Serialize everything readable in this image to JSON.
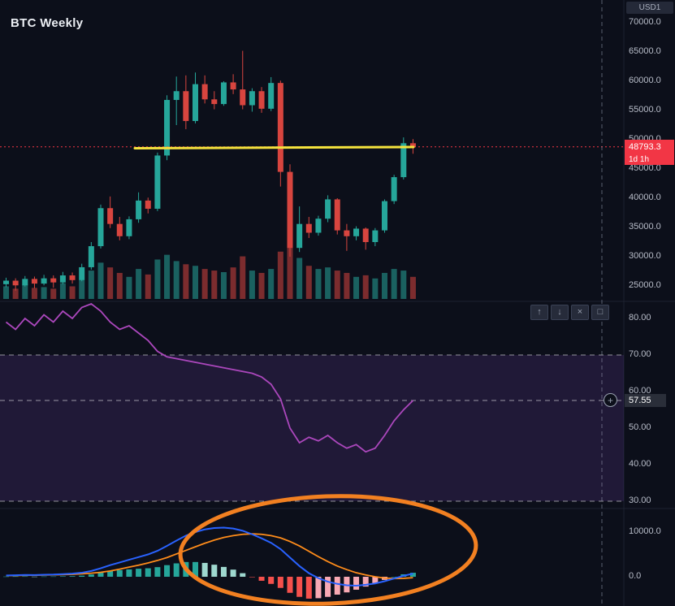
{
  "title": "BTC Weekly",
  "top_right_currency": "USD1",
  "price_axis": {
    "labels": [
      "70000.0",
      "65000.0",
      "60000.0",
      "55000.0",
      "50000.0",
      "45000.0",
      "40000.0",
      "35000.0",
      "30000.0",
      "25000.0"
    ],
    "current_price_label": "48793.3",
    "countdown_label": "1d 1h"
  },
  "rsi_axis": {
    "labels": [
      "80.00",
      "70.00",
      "60.00",
      "50.00",
      "40.00",
      "30.00"
    ],
    "current_value_label": "57.55"
  },
  "macd_axis": {
    "labels": [
      "10000.0",
      "0.0"
    ]
  },
  "pane_toolbar": {
    "buttons": [
      {
        "name": "move-pane-up",
        "glyph": "↑"
      },
      {
        "name": "move-pane-down",
        "glyph": "↓"
      },
      {
        "name": "close-pane",
        "glyph": "×"
      },
      {
        "name": "maximize-pane",
        "glyph": "□"
      }
    ]
  },
  "icons": {
    "plus_icon": "+"
  },
  "colors": {
    "background": "#0c0f1a",
    "candle_up": "#26a69a",
    "candle_down": "#d8453f",
    "volume_up": "rgba(38,166,154,0.55)",
    "volume_down": "rgba(216,69,63,0.55)",
    "trendline": "#f5e33d",
    "price_line": "#f23645",
    "price_label_bg": "#f23645",
    "rsi_line": "#ab47bc",
    "rsi_band_fill": "rgba(136,80,210,0.16)",
    "level_line": "rgba(255,255,255,0.55)",
    "macd_line": "#2962ff",
    "signal_line": "#ff8c1a",
    "hist_up": "#26a69a",
    "hist_up_light": "#9fd8cf",
    "hist_down": "#f5504c",
    "hist_down_light": "#f8a9b4",
    "annotation": "#f28021",
    "crosshair": "rgba(165,175,195,0.5)",
    "separator": "#1d2230",
    "axis_text": "#b8bdc9"
  },
  "chart_data": [
    {
      "type": "bar",
      "subtype": "candlestick-with-volume",
      "name": "BTC price, weekly candles",
      "visible_price_range": [
        22500,
        73900
      ],
      "trendline_price": 48800,
      "current_price": 48793.3,
      "countdown": "1d 1h",
      "ohlc": [
        [
          25300,
          26400,
          24800,
          25900
        ],
        [
          25900,
          26300,
          24200,
          25100
        ],
        [
          25100,
          26700,
          24900,
          26200
        ],
        [
          26200,
          26600,
          24600,
          25400
        ],
        [
          25400,
          26900,
          25100,
          26300
        ],
        [
          26300,
          26800,
          24700,
          25600
        ],
        [
          25600,
          27400,
          25300,
          26800
        ],
        [
          26800,
          27300,
          25400,
          26000
        ],
        [
          26000,
          28800,
          25800,
          28200
        ],
        [
          28200,
          32500,
          27800,
          31800
        ],
        [
          31800,
          38900,
          31400,
          38300
        ],
        [
          38300,
          40300,
          34900,
          35600
        ],
        [
          35600,
          36800,
          32800,
          33500
        ],
        [
          33500,
          36900,
          33000,
          36400
        ],
        [
          36400,
          41000,
          35800,
          39600
        ],
        [
          39600,
          40100,
          37400,
          38200
        ],
        [
          38200,
          47800,
          37800,
          47300
        ],
        [
          47300,
          57600,
          46500,
          56800
        ],
        [
          56800,
          60800,
          52500,
          58300
        ],
        [
          58300,
          61000,
          51800,
          53200
        ],
        [
          53200,
          61500,
          52800,
          59500
        ],
        [
          59500,
          61000,
          56200,
          56900
        ],
        [
          56900,
          58300,
          55200,
          56100
        ],
        [
          56100,
          60000,
          55800,
          59800
        ],
        [
          59800,
          61200,
          57800,
          58600
        ],
        [
          58600,
          65200,
          55200,
          55900
        ],
        [
          55900,
          58800,
          54800,
          58300
        ],
        [
          58300,
          59000,
          54600,
          55300
        ],
        [
          55300,
          60700,
          54900,
          59700
        ],
        [
          59700,
          60100,
          42000,
          44500
        ],
        [
          44500,
          45800,
          30000,
          31500
        ],
        [
          31500,
          38600,
          30800,
          35600
        ],
        [
          35600,
          36800,
          33200,
          34100
        ],
        [
          34100,
          37000,
          33600,
          36500
        ],
        [
          36500,
          40500,
          35900,
          39800
        ],
        [
          39800,
          40000,
          33800,
          34500
        ],
        [
          34500,
          35600,
          31000,
          33500
        ],
        [
          33500,
          35200,
          32800,
          34800
        ],
        [
          34800,
          35000,
          31200,
          32500
        ],
        [
          32500,
          34900,
          31800,
          34500
        ],
        [
          34500,
          39800,
          34100,
          39500
        ],
        [
          39500,
          44000,
          39000,
          43600
        ],
        [
          43600,
          50400,
          43200,
          49400
        ],
        [
          49400,
          50100,
          47600,
          48793
        ]
      ],
      "volume": [
        16,
        13,
        18,
        14,
        15,
        13,
        20,
        16,
        24,
        36,
        46,
        40,
        33,
        28,
        38,
        31,
        50,
        56,
        48,
        44,
        42,
        38,
        36,
        34,
        40,
        54,
        36,
        33,
        38,
        60,
        68,
        52,
        42,
        38,
        40,
        36,
        33,
        28,
        30,
        26,
        33,
        38,
        36,
        28
      ]
    },
    {
      "type": "line",
      "name": "RSI (weekly)",
      "band": [
        30,
        70
      ],
      "current_value": 57.55,
      "axis_ticks": [
        80,
        70,
        60,
        50,
        40,
        30
      ],
      "values": [
        79,
        77,
        80,
        78,
        81,
        79,
        82,
        80,
        83,
        84,
        82,
        79,
        77,
        78,
        76,
        74,
        71,
        69.5,
        69,
        68.5,
        68,
        67.5,
        67,
        66.5,
        66,
        65.5,
        65,
        64,
        62,
        58,
        50,
        46,
        47.5,
        46.5,
        48,
        46,
        44.5,
        45.5,
        43.5,
        44.5,
        48,
        52,
        55,
        57.55
      ]
    },
    {
      "type": "bar",
      "subtype": "macd",
      "name": "MACD (weekly)",
      "axis_ticks": [
        10000,
        0
      ],
      "macd": [
        300,
        350,
        400,
        380,
        450,
        500,
        600,
        700,
        900,
        1300,
        1900,
        2600,
        3200,
        3800,
        4400,
        5000,
        5800,
        6900,
        8100,
        9200,
        10000,
        10600,
        10900,
        11000,
        10800,
        10300,
        9500,
        8600,
        7600,
        6200,
        4300,
        2400,
        800,
        -300,
        -1100,
        -1600,
        -1900,
        -2000,
        -1800,
        -1500,
        -1000,
        -400,
        200,
        700
      ],
      "signal": [
        250,
        280,
        320,
        350,
        390,
        430,
        490,
        560,
        660,
        790,
        1000,
        1300,
        1700,
        2150,
        2600,
        3100,
        3650,
        4300,
        5100,
        5900,
        6700,
        7500,
        8200,
        8800,
        9200,
        9500,
        9600,
        9500,
        9200,
        8700,
        7900,
        6900,
        5700,
        4500,
        3400,
        2400,
        1600,
        900,
        400,
        0,
        -300,
        -400,
        -350,
        -200
      ],
      "histogram": [
        50,
        70,
        80,
        30,
        60,
        70,
        110,
        140,
        240,
        510,
        900,
        1300,
        1500,
        1650,
        1800,
        1900,
        2150,
        2600,
        3000,
        3300,
        3300,
        3100,
        2700,
        2200,
        1600,
        800,
        -100,
        -900,
        -1600,
        -2500,
        -3600,
        -4500,
        -4900,
        -4800,
        -4500,
        -4000,
        -3500,
        -2900,
        -2200,
        -1500,
        -700,
        0,
        550,
        900
      ],
      "annotation": {
        "shape": "ellipse",
        "meaning": "highlights MACD bearish/bullish crossover region",
        "color": "#f28021"
      }
    }
  ]
}
